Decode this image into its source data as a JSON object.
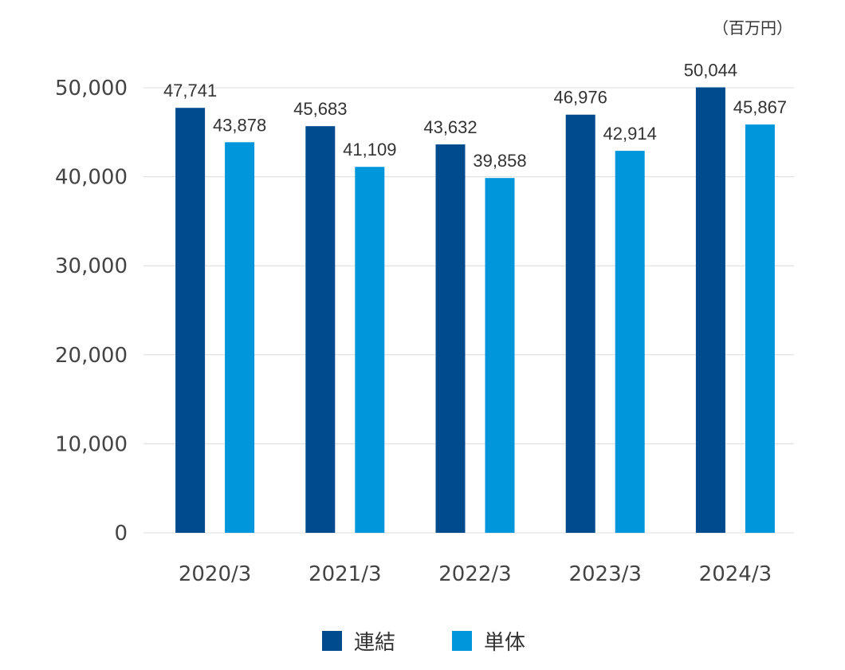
{
  "chart_data": {
    "type": "bar",
    "unit": "（百万円）",
    "categories": [
      "2020/3",
      "2021/3",
      "2022/3",
      "2023/3",
      "2024/3"
    ],
    "series": [
      {
        "name": "連結",
        "color": "#004b8d",
        "values": [
          47741,
          45683,
          43632,
          46976,
          50044
        ],
        "labels": [
          "47,741",
          "45,683",
          "43,632",
          "46,976",
          "50,044"
        ]
      },
      {
        "name": "単体",
        "color": "#0096dc",
        "values": [
          43878,
          41109,
          39858,
          42914,
          45867
        ],
        "labels": [
          "43,878",
          "41,109",
          "39,858",
          "42,914",
          "45,867"
        ]
      }
    ],
    "y_ticks": [
      "0",
      "10,000",
      "20,000",
      "30,000",
      "40,000",
      "50,000"
    ],
    "ylim": [
      0,
      50000
    ],
    "grid": true,
    "legend_position": "bottom-center"
  }
}
